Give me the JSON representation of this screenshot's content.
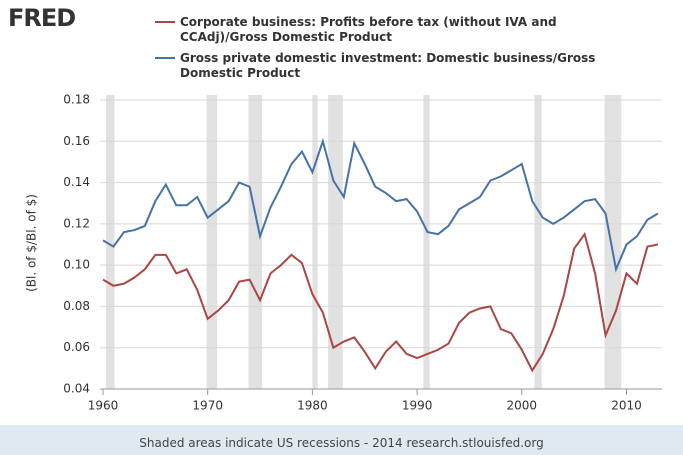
{
  "chart_data": {
    "type": "line",
    "logo": "FRED",
    "ylabel": "(Bl. of $/Bl. of $)",
    "footer": "Shaded areas indicate US recessions - 2014 research.stlouisfed.org",
    "x": [
      1960,
      1961,
      1962,
      1963,
      1964,
      1965,
      1966,
      1967,
      1968,
      1969,
      1970,
      1971,
      1972,
      1973,
      1974,
      1975,
      1976,
      1977,
      1978,
      1979,
      1980,
      1981,
      1982,
      1983,
      1984,
      1985,
      1986,
      1987,
      1988,
      1989,
      1990,
      1991,
      1992,
      1993,
      1994,
      1995,
      1996,
      1997,
      1998,
      1999,
      2000,
      2001,
      2002,
      2003,
      2004,
      2005,
      2006,
      2007,
      2008,
      2009,
      2010,
      2011,
      2012,
      2013
    ],
    "series": [
      {
        "name": "Corporate business: Profits before tax (without IVA and CCAdj)/Gross Domestic Product",
        "color": "#aa4643",
        "values": [
          0.093,
          0.09,
          0.091,
          0.094,
          0.098,
          0.105,
          0.105,
          0.096,
          0.098,
          0.088,
          0.074,
          0.078,
          0.083,
          0.092,
          0.093,
          0.083,
          0.096,
          0.1,
          0.105,
          0.101,
          0.086,
          0.077,
          0.06,
          0.063,
          0.065,
          0.058,
          0.05,
          0.058,
          0.063,
          0.057,
          0.055,
          0.057,
          0.059,
          0.062,
          0.072,
          0.077,
          0.079,
          0.08,
          0.069,
          0.067,
          0.059,
          0.049,
          0.057,
          0.069,
          0.085,
          0.108,
          0.115,
          0.096,
          0.066,
          0.078,
          0.096,
          0.091,
          0.109,
          0.11
        ]
      },
      {
        "name": "Gross private domestic investment: Domestic business/Gross Domestic Product",
        "color": "#4572a7",
        "values": [
          0.112,
          0.109,
          0.116,
          0.117,
          0.119,
          0.131,
          0.139,
          0.129,
          0.129,
          0.133,
          0.123,
          0.127,
          0.131,
          0.14,
          0.138,
          0.114,
          0.128,
          0.138,
          0.149,
          0.155,
          0.145,
          0.16,
          0.141,
          0.133,
          0.159,
          0.149,
          0.138,
          0.135,
          0.131,
          0.132,
          0.126,
          0.116,
          0.115,
          0.119,
          0.127,
          0.13,
          0.133,
          0.141,
          0.143,
          0.146,
          0.149,
          0.131,
          0.123,
          0.12,
          0.123,
          0.127,
          0.131,
          0.132,
          0.125,
          0.098,
          0.11,
          0.114,
          0.122,
          0.125
        ]
      }
    ],
    "recessions": [
      [
        1960.3,
        1961.1
      ],
      [
        1969.9,
        1970.9
      ],
      [
        1973.9,
        1975.2
      ],
      [
        1980.0,
        1980.5
      ],
      [
        1981.5,
        1982.9
      ],
      [
        1990.6,
        1991.2
      ],
      [
        2001.2,
        2001.9
      ],
      [
        2007.9,
        2009.5
      ]
    ],
    "recession_color": "#e1e1e1",
    "xlim": [
      1960,
      2013.2
    ],
    "xticks": [
      1960,
      1970,
      1980,
      1990,
      2000,
      2010
    ],
    "ylim": [
      0.04,
      0.18
    ],
    "yticks": [
      0.04,
      0.06,
      0.08,
      {
        "value": 0.1,
        "label": "0.10"
      },
      0.12,
      0.14,
      0.16,
      0.18
    ],
    "grid": true
  }
}
